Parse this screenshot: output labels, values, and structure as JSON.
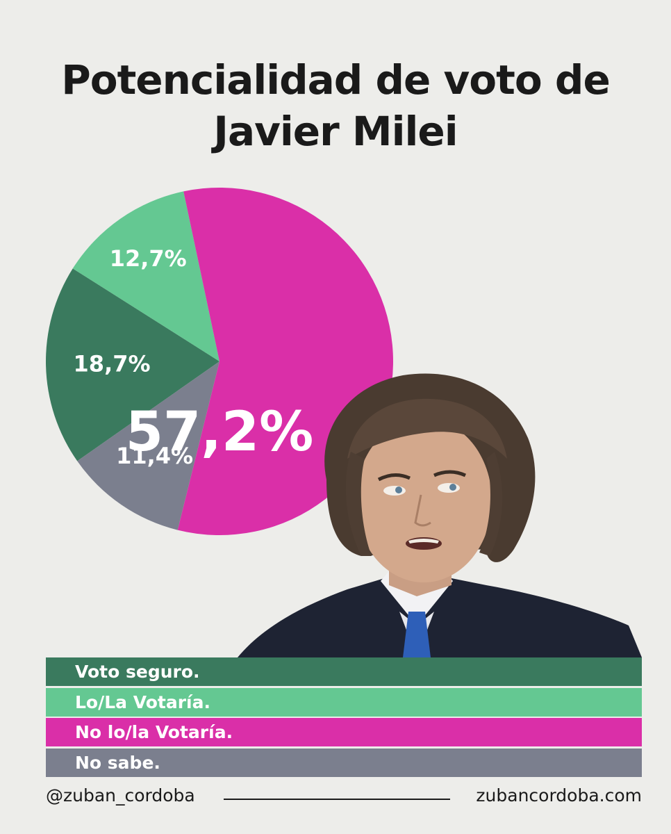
{
  "chart_data": {
    "type": "pie",
    "title": "Potencialidad de voto de Javier Milei",
    "title_lines": [
      "Potencialidad de voto de",
      "Javier Milei"
    ],
    "slices": [
      {
        "label": "Voto seguro.",
        "value": 18.7,
        "display": "18,7%",
        "color": "#3a7a5e"
      },
      {
        "label": "Lo/La Votaría.",
        "value": 12.7,
        "display": "12,7%",
        "color": "#64c892"
      },
      {
        "label": "No lo/la Votaría.",
        "value": 57.2,
        "display": "57,2%",
        "color": "#da2fa8"
      },
      {
        "label": "No sabe.",
        "value": 11.4,
        "display": "11,4%",
        "color": "#7b7f8e"
      }
    ],
    "legend_position": "bottom"
  },
  "footer": {
    "handle": "@zuban_cordoba",
    "website": "zubancordoba.com"
  }
}
